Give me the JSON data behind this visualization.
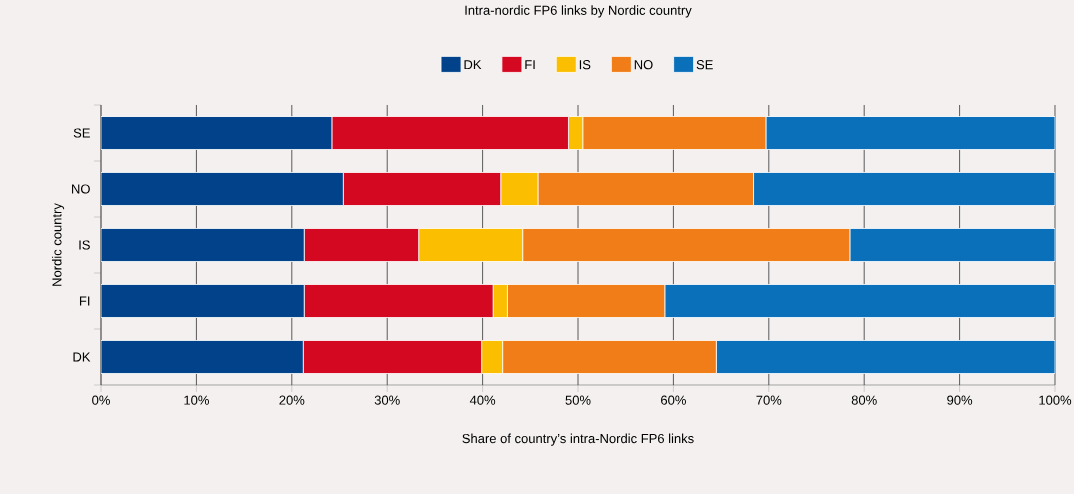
{
  "chart_data": {
    "type": "bar",
    "orientation": "horizontal",
    "stacked": true,
    "title": "Intra-nordic FP6 links by Nordic country",
    "xlabel": "Share of country’s intra-Nordic FP6 links",
    "ylabel": "Nordic country",
    "categories": [
      "SE",
      "NO",
      "IS",
      "FI",
      "DK"
    ],
    "series": [
      {
        "name": "DK",
        "color": "#02428a",
        "values": [
          24.2,
          25.4,
          21.3,
          21.3,
          21.2
        ]
      },
      {
        "name": "FI",
        "color": "#d40820",
        "values": [
          24.8,
          16.5,
          12.0,
          19.8,
          18.7
        ]
      },
      {
        "name": "IS",
        "color": "#fbbe00",
        "values": [
          1.5,
          3.9,
          10.9,
          1.5,
          2.2
        ]
      },
      {
        "name": "NO",
        "color": "#f07d17",
        "values": [
          19.2,
          22.6,
          34.3,
          16.5,
          22.4
        ]
      },
      {
        "name": "SE",
        "color": "#0a70ba",
        "values": [
          30.3,
          31.6,
          21.5,
          40.9,
          35.5
        ]
      }
    ],
    "xlim": [
      0,
      100
    ],
    "xticks": [
      {
        "value": 0,
        "label": "0%"
      },
      {
        "value": 10,
        "label": "10%"
      },
      {
        "value": 20,
        "label": "20%"
      },
      {
        "value": 30,
        "label": "30%"
      },
      {
        "value": 40,
        "label": "40%"
      },
      {
        "value": 50,
        "label": "50%"
      },
      {
        "value": 60,
        "label": "60%"
      },
      {
        "value": 70,
        "label": "70%"
      },
      {
        "value": 80,
        "label": "80%"
      },
      {
        "value": 90,
        "label": "90%"
      },
      {
        "value": 100,
        "label": "100%"
      }
    ],
    "grid": "x",
    "legend": "top"
  }
}
